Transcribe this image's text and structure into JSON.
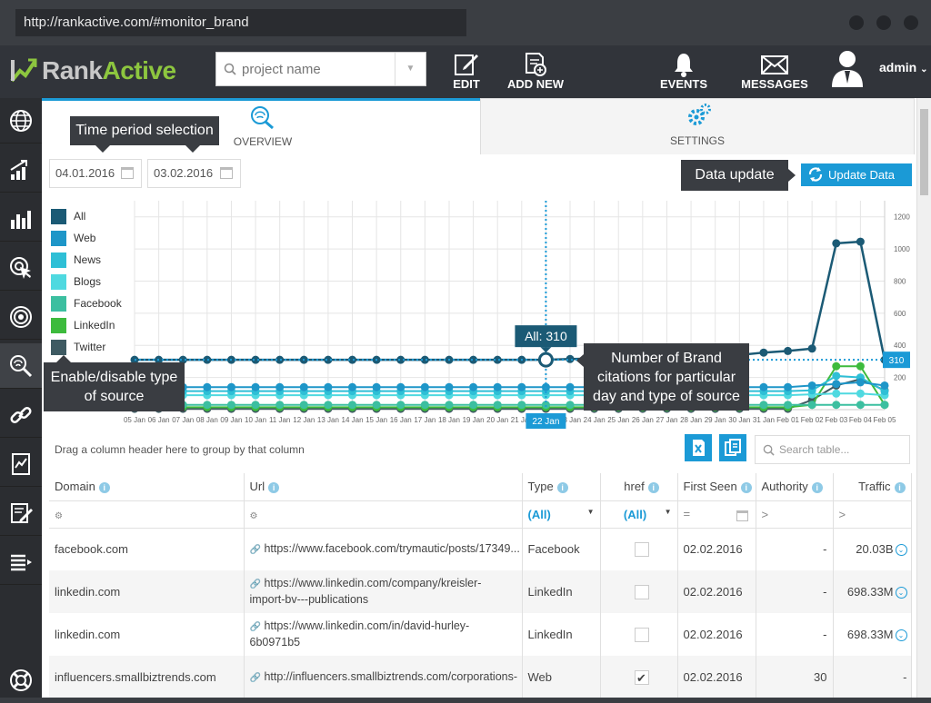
{
  "browser": {
    "url": "http://rankactive.com/#monitor_brand"
  },
  "app": {
    "logo_rank": "Rank",
    "logo_active": "Active"
  },
  "topbar": {
    "project_placeholder": "project name",
    "edit": "EDIT",
    "add_new": "ADD NEW",
    "events": "EVENTS",
    "messages": "MESSAGES",
    "user": "admin"
  },
  "tabs": {
    "overview": "OVERVIEW",
    "settings": "SETTINGS"
  },
  "dates": {
    "from": "04.01.2016",
    "to": "03.02.2016"
  },
  "annotations": {
    "time_period": "Time period selection",
    "data_update": "Data update",
    "enable_disable": "Enable/disable type of source",
    "citations": "Number of Brand citations for particular day and type of source"
  },
  "update_button": "Update Data",
  "chart_data": {
    "type": "line",
    "x": [
      "05 Jan",
      "06 Jan",
      "07 Jan",
      "08 Jan",
      "09 Jan",
      "10 Jan",
      "11 Jan",
      "12 Jan",
      "13 Jan",
      "14 Jan",
      "15 Jan",
      "16 Jan",
      "17 Jan",
      "18 Jan",
      "19 Jan",
      "20 Jan",
      "21 Jan",
      "22 Jan",
      "23 Jan",
      "24 Jan",
      "25 Jan",
      "26 Jan",
      "27 Jan",
      "28 Jan",
      "29 Jan",
      "30 Jan",
      "31 Jan",
      "Feb 01",
      "Feb 02",
      "Feb 03",
      "Feb 04",
      "Feb 05"
    ],
    "yticks": [
      200,
      400,
      600,
      800,
      1000,
      1200
    ],
    "ylim": [
      0,
      1300
    ],
    "series": [
      {
        "name": "All",
        "color": "#1b5a75",
        "values": [
          310,
          310,
          310,
          310,
          310,
          310,
          310,
          310,
          310,
          310,
          310,
          310,
          310,
          310,
          310,
          310,
          310,
          310,
          315,
          318,
          320,
          322,
          325,
          330,
          335,
          340,
          355,
          365,
          380,
          1035,
          1045,
          310
        ]
      },
      {
        "name": "Web",
        "color": "#1e96c8",
        "values": [
          140,
          140,
          140,
          140,
          140,
          140,
          140,
          140,
          140,
          140,
          140,
          140,
          140,
          140,
          140,
          140,
          140,
          140,
          140,
          140,
          140,
          140,
          140,
          140,
          140,
          140,
          140,
          140,
          150,
          160,
          170,
          150
        ]
      },
      {
        "name": "News",
        "color": "#2ebfd6",
        "values": [
          115,
          115,
          115,
          115,
          115,
          115,
          115,
          115,
          115,
          115,
          115,
          115,
          115,
          115,
          115,
          115,
          115,
          115,
          115,
          115,
          115,
          115,
          115,
          115,
          115,
          115,
          115,
          115,
          120,
          210,
          200,
          115
        ]
      },
      {
        "name": "Blogs",
        "color": "#4fd9e0",
        "values": [
          90,
          90,
          90,
          90,
          90,
          90,
          90,
          90,
          90,
          90,
          90,
          90,
          90,
          90,
          90,
          90,
          90,
          90,
          90,
          90,
          90,
          90,
          90,
          90,
          90,
          90,
          90,
          90,
          95,
          100,
          100,
          90
        ]
      },
      {
        "name": "Facebook",
        "color": "#3cbfa0",
        "values": [
          30,
          30,
          30,
          30,
          30,
          30,
          30,
          30,
          30,
          30,
          30,
          30,
          30,
          30,
          30,
          30,
          30,
          30,
          30,
          30,
          30,
          30,
          30,
          30,
          30,
          30,
          30,
          30,
          30,
          30,
          30,
          30
        ]
      },
      {
        "name": "LinkedIn",
        "color": "#3dbb3d",
        "values": [
          15,
          15,
          15,
          15,
          15,
          15,
          15,
          15,
          15,
          15,
          15,
          15,
          15,
          15,
          15,
          15,
          15,
          15,
          15,
          15,
          15,
          15,
          15,
          15,
          15,
          15,
          15,
          15,
          30,
          270,
          270,
          30
        ]
      },
      {
        "name": "Twitter",
        "color": "#3e5a62",
        "values": [
          5,
          5,
          5,
          5,
          5,
          5,
          5,
          5,
          5,
          5,
          5,
          5,
          5,
          5,
          5,
          5,
          5,
          5,
          5,
          5,
          5,
          5,
          5,
          5,
          5,
          5,
          5,
          5,
          60,
          150,
          190,
          120
        ]
      }
    ],
    "tooltip": {
      "label": "All: 310",
      "x_label": "22 Jan",
      "value_label": "310"
    }
  },
  "grid": {
    "group_hint": "Drag a column header here to group by that column",
    "search_placeholder": "Search table...",
    "columns": [
      "Domain",
      "Url",
      "Type",
      "href",
      "First Seen",
      "Authority",
      "Traffic"
    ],
    "filter_all": "(All)",
    "rows": [
      {
        "domain": "facebook.com",
        "url1": "https://www.facebook.com/trymautic/posts/17349...",
        "url2": "",
        "type": "Facebook",
        "checked": false,
        "first_seen": "02.02.2016",
        "authority": "-",
        "traffic": "20.03B"
      },
      {
        "domain": "linkedin.com",
        "url1": "https://www.linkedin.com/company/kreisler-",
        "url2": "import-bv---publications",
        "type": "LinkedIn",
        "checked": false,
        "first_seen": "02.02.2016",
        "authority": "-",
        "traffic": "698.33M"
      },
      {
        "domain": "linkedin.com",
        "url1": "https://www.linkedin.com/in/david-hurley-",
        "url2": "6b0971b5",
        "type": "LinkedIn",
        "checked": false,
        "first_seen": "02.02.2016",
        "authority": "-",
        "traffic": "698.33M"
      },
      {
        "domain": "influencers.smallbiztrends.com",
        "url1": "http://influencers.smallbiztrends.com/corporations-",
        "url2": "",
        "type": "Web",
        "checked": true,
        "first_seen": "02.02.2016",
        "authority": "30",
        "traffic": "-"
      }
    ]
  }
}
